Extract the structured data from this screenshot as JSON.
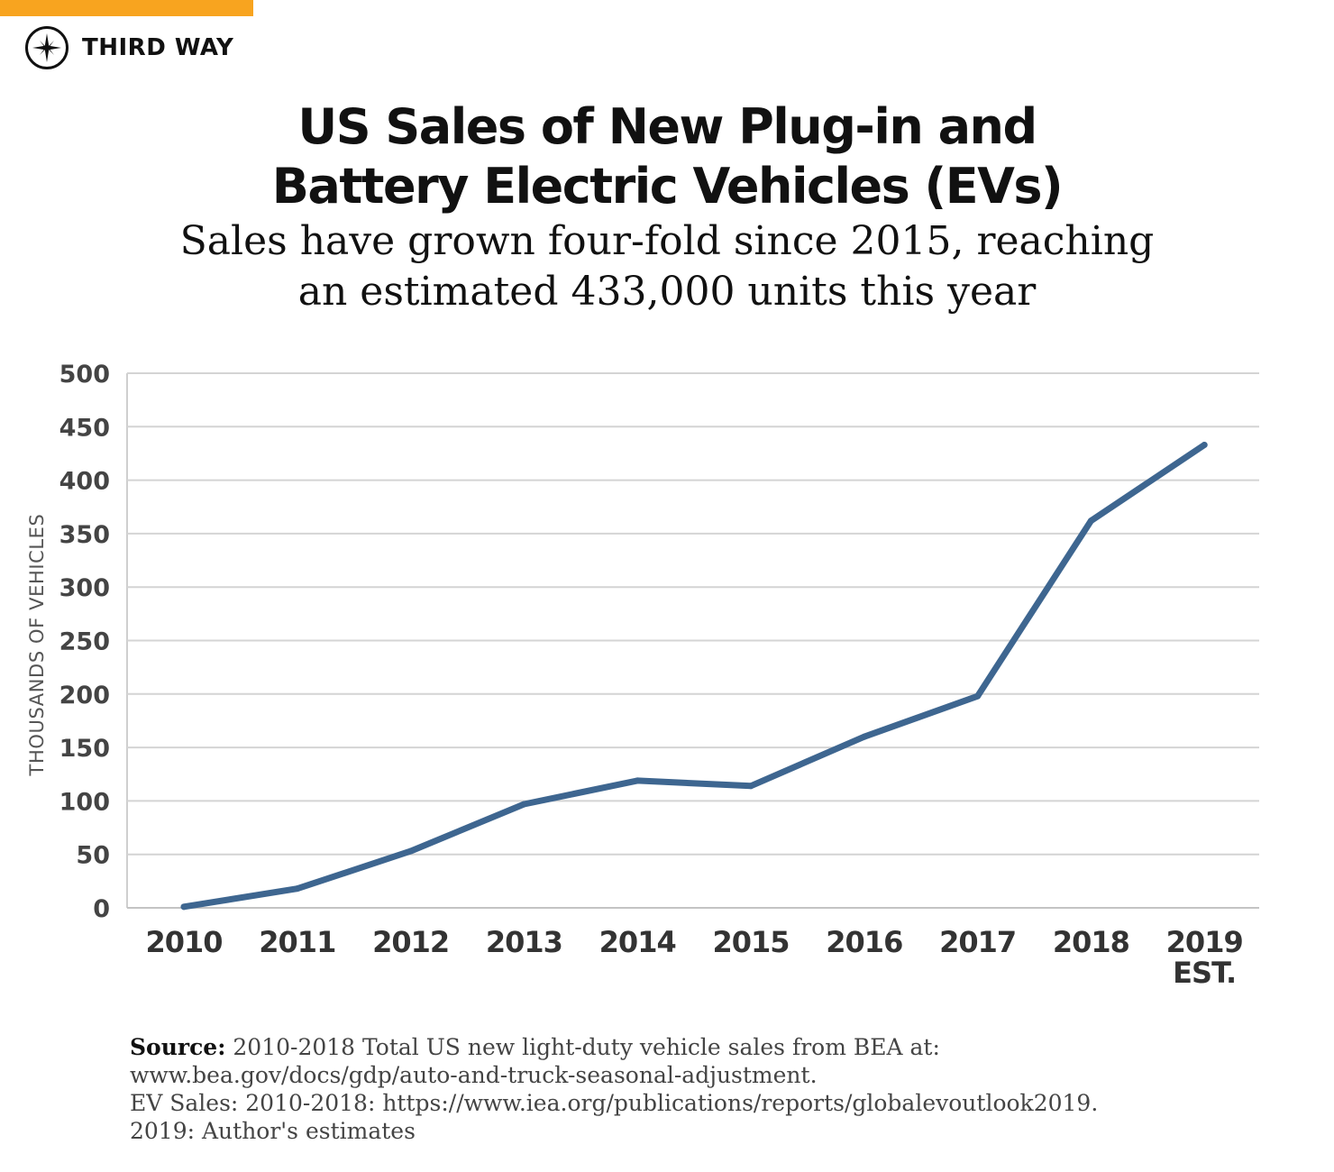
{
  "brand": {
    "name": "THIRD WAY",
    "logo_icon": "compass-star-icon",
    "accent_color": "#f8a41f"
  },
  "chart_data": {
    "type": "line",
    "title": "US Sales of New Plug-in and Battery Electric Vehicles (EVs)",
    "title_lines": [
      "US Sales of New Plug-in and",
      "Battery Electric Vehicles (EVs)"
    ],
    "subtitle_lines": [
      "Sales have grown four-fold since 2015, reaching",
      "an estimated 433,000 units this year"
    ],
    "xlabel": "",
    "ylabel": "THOUSANDS OF VEHICLES",
    "categories": [
      [
        "2010"
      ],
      [
        "2011"
      ],
      [
        "2012"
      ],
      [
        "2013"
      ],
      [
        "2014"
      ],
      [
        "2015"
      ],
      [
        "2016"
      ],
      [
        "2017"
      ],
      [
        "2018"
      ],
      [
        "2019",
        "EST."
      ]
    ],
    "series": [
      {
        "name": "EV sales",
        "color": "#3e6690",
        "values": [
          1,
          18,
          53,
          97,
          119,
          114,
          160,
          198,
          362,
          433
        ]
      }
    ],
    "ylim": [
      0,
      500
    ],
    "yticks": [
      0,
      50,
      100,
      150,
      200,
      250,
      300,
      350,
      400,
      450,
      500
    ],
    "grid": true,
    "legend": "none"
  },
  "source": {
    "label": "Source:",
    "line1": "2010-2018 Total US new light-duty vehicle sales from BEA at:",
    "line2": "www.bea.gov/docs/gdp/auto-and-truck-seasonal-adjustment.",
    "line3": "EV Sales: 2010-2018: https://www.iea.org/publications/reports/globalevoutlook2019.",
    "line4": "2019: Author's estimates"
  }
}
